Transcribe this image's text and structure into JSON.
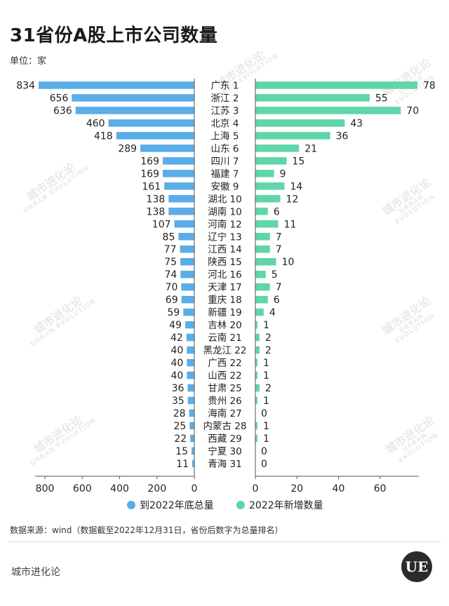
{
  "title": "31省份A股上市公司数量",
  "unit": "单位：家",
  "source": "数据来源：wind（数据截至2022年12月31日，省份后数字为总量排名）",
  "footer": {
    "brand": "城市进化论",
    "logo_text": "UE"
  },
  "watermark": {
    "cn": "城市进化论",
    "en": "URBAN EVOLUTION"
  },
  "colors": {
    "left": "#5aade8",
    "right": "#5fd6a8",
    "axis": "#555555"
  },
  "chart_data": {
    "type": "bar",
    "orientation": "horizontal-butterfly",
    "categories": [
      "广东 1",
      "浙江 2",
      "江苏 3",
      "北京 4",
      "上海 5",
      "山东 6",
      "四川 7",
      "福建 7",
      "安徽 9",
      "湖北 10",
      "湖南 10",
      "河南 12",
      "辽宁 13",
      "江西 14",
      "陕西 15",
      "河北 16",
      "天津 17",
      "重庆 18",
      "新疆 19",
      "吉林 20",
      "云南 21",
      "黑龙江 22",
      "广西 22",
      "山西 22",
      "甘肃 25",
      "贵州 26",
      "海南 27",
      "内蒙古 28",
      "西藏 29",
      "宁夏 30",
      "青海 31"
    ],
    "series": [
      {
        "name": "到2022年底总量",
        "values": [
          834,
          656,
          636,
          460,
          418,
          289,
          169,
          169,
          161,
          138,
          138,
          107,
          85,
          77,
          75,
          74,
          70,
          69,
          59,
          49,
          42,
          40,
          40,
          40,
          36,
          35,
          28,
          25,
          22,
          15,
          11
        ]
      },
      {
        "name": "2022年新增数量",
        "values": [
          78,
          55,
          70,
          43,
          36,
          21,
          15,
          9,
          14,
          12,
          6,
          11,
          7,
          7,
          10,
          5,
          7,
          6,
          4,
          1,
          2,
          2,
          1,
          1,
          2,
          1,
          0,
          1,
          1,
          0,
          0
        ]
      }
    ],
    "left_axis": {
      "ticks": [
        800,
        600,
        400,
        200,
        0
      ],
      "range": [
        0,
        834
      ]
    },
    "right_axis": {
      "ticks": [
        0,
        20,
        40,
        60
      ],
      "range": [
        0,
        78
      ]
    },
    "legend": [
      "到2022年底总量",
      "2022年新增数量"
    ],
    "legend_position": "bottom"
  }
}
